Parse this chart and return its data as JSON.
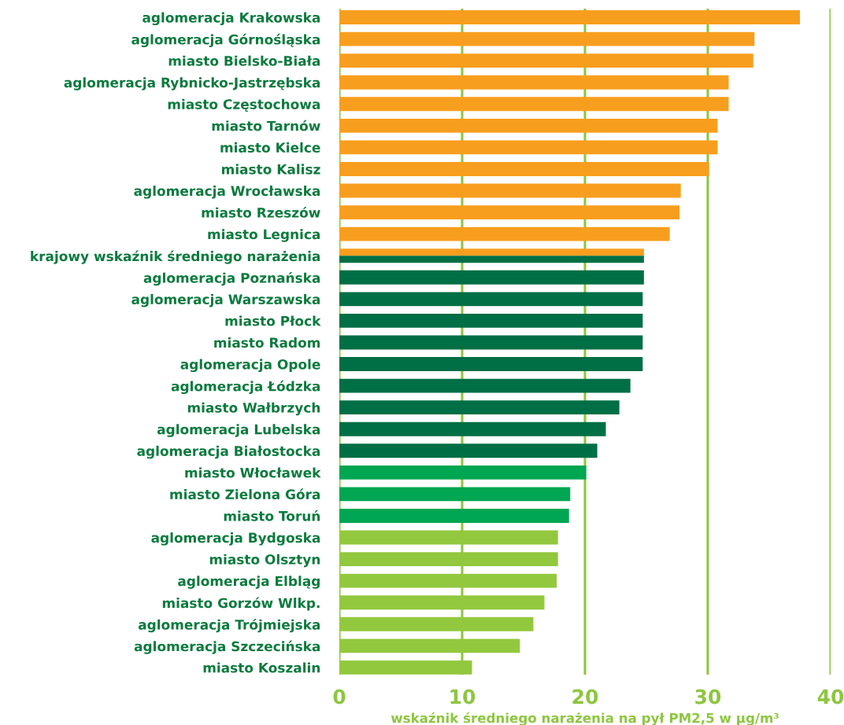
{
  "chart_data": {
    "type": "bar",
    "orientation": "horizontal",
    "xlabel": "wskaźnik średniego narażenia na pył PM2,5 w µg/m³",
    "categories": [
      "aglomeracja Krakowska",
      "aglomeracja Górnośląska",
      "miasto Bielsko-Biała",
      "aglomeracja Rybnicko-Jastrzębska",
      "miasto Częstochowa",
      "miasto Tarnów",
      "miasto Kielce",
      "miasto Kalisz",
      "aglomeracja Wrocławska",
      "miasto Rzeszów",
      "miasto Legnica",
      "krajowy wskaźnik średniego narażenia",
      "aglomeracja Poznańska",
      "aglomeracja Warszawska",
      "miasto Płock",
      "miasto Radom",
      "aglomeracja Opole",
      "aglomeracja Łódzka",
      "miasto Wałbrzych",
      "aglomeracja Lubelska",
      "aglomeracja Białostocka",
      "miasto Włocławek",
      "miasto Zielona Góra",
      "miasto Toruń",
      "aglomeracja Bydgoska",
      "miasto Olsztyn",
      "aglomeracja Elbląg",
      "miasto Gorzów Wlkp.",
      "aglomeracja Trójmiejska",
      "aglomeracja Szczecińska",
      "miasto Koszalin"
    ],
    "series": [
      {
        "values": [
          37.5,
          33.8,
          33.7,
          31.7,
          31.7,
          30.8,
          30.8,
          30.1,
          27.8,
          27.7,
          26.9,
          24.8,
          24.8,
          24.7,
          24.7,
          24.7,
          24.7,
          23.7,
          22.8,
          21.7,
          21.0,
          20.1,
          18.8,
          18.7,
          17.8,
          17.8,
          17.7,
          16.7,
          15.8,
          14.7,
          10.8
        ],
        "colors": [
          "#f89e1e",
          "#f89e1e",
          "#f89e1e",
          "#f89e1e",
          "#f89e1e",
          "#f89e1e",
          "#f89e1e",
          "#f89e1e",
          "#f89e1e",
          "#f89e1e",
          "#f89e1e",
          "#f89e1e",
          "#006f45",
          "#006f45",
          "#006f45",
          "#006f45",
          "#006f45",
          "#006f45",
          "#006f45",
          "#006f45",
          "#006f45",
          "#00a651",
          "#00a651",
          "#00a651",
          "#92c83e",
          "#92c83e",
          "#92c83e",
          "#92c83e",
          "#92c83e",
          "#92c83e",
          "#92c83e"
        ]
      },
      {
        "color": "#006f45",
        "values": [
          null,
          null,
          null,
          null,
          null,
          null,
          null,
          null,
          null,
          null,
          null,
          24.8,
          null,
          null,
          null,
          null,
          null,
          null,
          null,
          null,
          null,
          null,
          null,
          null,
          null,
          null,
          null,
          null,
          null,
          null,
          null
        ]
      }
    ],
    "xlim": [
      0,
      40
    ],
    "xticks": [
      0,
      10,
      20,
      30,
      40
    ],
    "grid": "x"
  }
}
